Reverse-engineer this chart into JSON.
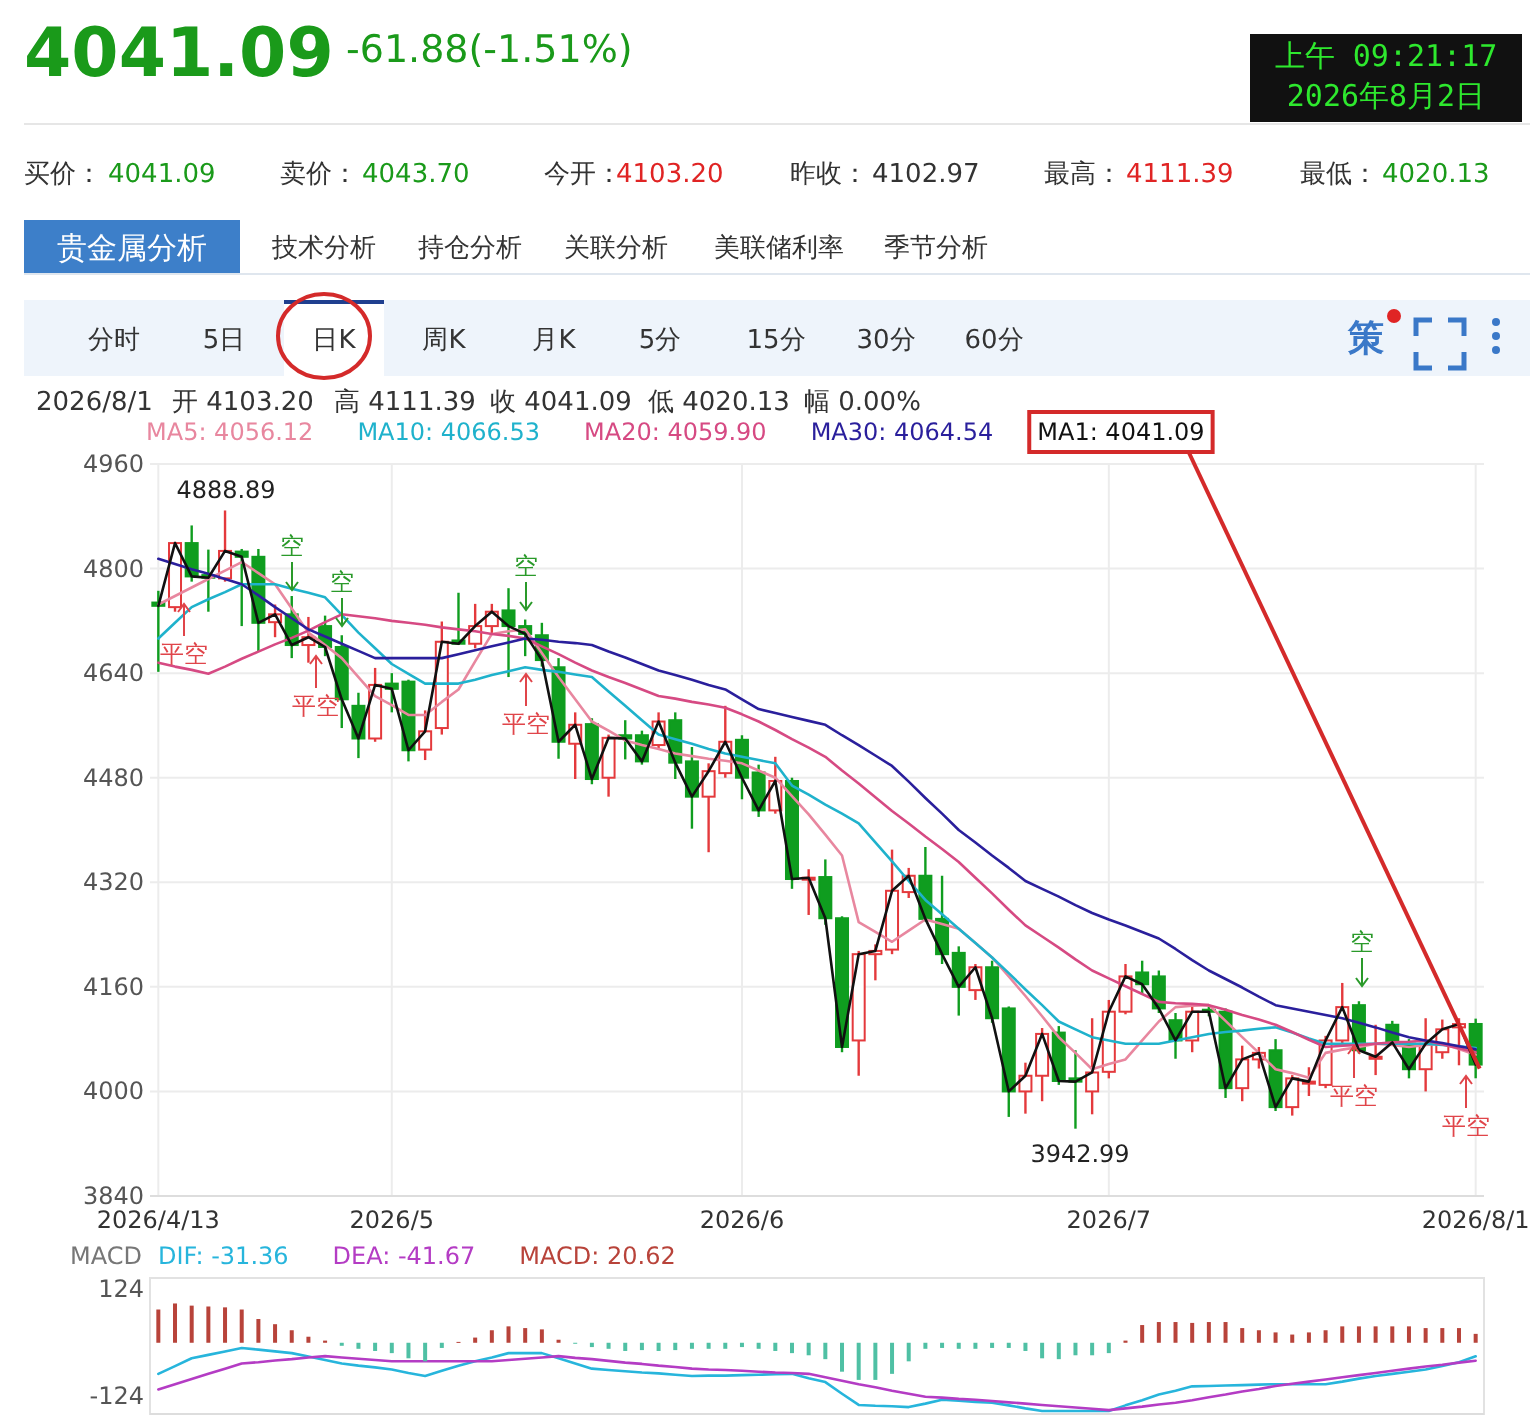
{
  "chart_data": [
    {
      "type": "other",
      "annotations": [
        "4041.09",
        "-61.88(-1.51%)",
        "上午 09:21:17",
        "2026年8月2日",
        "买价：",
        "4041.09",
        "卖价：",
        "4043.70",
        "今开：",
        "4103.20",
        "昨收：",
        "4102.97",
        "最高：",
        "4111.39",
        "最低：",
        "4020.13",
        "贵金属分析",
        "技术分析",
        "持仓分析",
        "关联分析",
        "美联储利率",
        "季节分析",
        "分时",
        "5日",
        "日K",
        "周K",
        "月K",
        "5分",
        "15分",
        "30分",
        "60分",
        "策",
        "2026/8/1",
        "开 4103.20",
        "高 4111.39",
        "收 4041.09",
        "低 4020.13",
        "幅 0.00%"
      ]
    },
    {
      "type": "candlestick",
      "categories": [
        "2026/4/13",
        null,
        null,
        null,
        null,
        null,
        null,
        null,
        null,
        null,
        null,
        null,
        null,
        null,
        "2026/5",
        null,
        null,
        null,
        null,
        null,
        null,
        null,
        null,
        null,
        null,
        null,
        null,
        null,
        null,
        null,
        null,
        null,
        null,
        null,
        null,
        "2026/6",
        null,
        null,
        null,
        null,
        null,
        null,
        null,
        null,
        null,
        null,
        null,
        null,
        null,
        null,
        null,
        null,
        null,
        null,
        null,
        null,
        null,
        "2026/7",
        null,
        null,
        null,
        null,
        null,
        null,
        null,
        null,
        null,
        null,
        null,
        null,
        null,
        null,
        null,
        null,
        null,
        null,
        null,
        null,
        null,
        "2026/8/1"
      ],
      "ohlc": [
        [
          4748,
          4766,
          4642,
          4743
        ],
        [
          4741,
          4841,
          4734,
          4839
        ],
        [
          4839,
          4866,
          4780,
          4788
        ],
        [
          4790,
          4829,
          4734,
          4786
        ],
        [
          4785,
          4888.89,
          4780,
          4827
        ],
        [
          4826,
          4830,
          4712,
          4818
        ],
        [
          4818,
          4830,
          4673,
          4717
        ],
        [
          4718,
          4745,
          4695,
          4730
        ],
        [
          4730,
          4758,
          4663,
          4683
        ],
        [
          4683,
          4726,
          4656,
          4695
        ],
        [
          4712,
          4728,
          4666,
          4680
        ],
        [
          4680,
          4698,
          4556,
          4600
        ],
        [
          4590,
          4610,
          4510,
          4540
        ],
        [
          4540,
          4648,
          4535,
          4622
        ],
        [
          4624,
          4640,
          4580,
          4616
        ],
        [
          4627,
          4630,
          4505,
          4522
        ],
        [
          4523,
          4583,
          4507,
          4551
        ],
        [
          4556,
          4719,
          4546,
          4688
        ],
        [
          4690,
          4763,
          4683,
          4685
        ],
        [
          4685,
          4746,
          4678,
          4712
        ],
        [
          4712,
          4746,
          4700,
          4734
        ],
        [
          4736,
          4770,
          4634,
          4712
        ],
        [
          4712,
          4722,
          4666,
          4700
        ],
        [
          4698,
          4717,
          4650,
          4660
        ],
        [
          4649,
          4663,
          4509,
          4535
        ],
        [
          4532,
          4580,
          4478,
          4561
        ],
        [
          4562,
          4571,
          4470,
          4478
        ],
        [
          4480,
          4546,
          4451,
          4541
        ],
        [
          4545,
          4568,
          4508,
          4540
        ],
        [
          4545,
          4552,
          4500,
          4505
        ],
        [
          4530,
          4580,
          4525,
          4566
        ],
        [
          4568,
          4580,
          4478,
          4503
        ],
        [
          4505,
          4527,
          4402,
          4451
        ],
        [
          4451,
          4502,
          4366,
          4490
        ],
        [
          4487,
          4590,
          4480,
          4535
        ],
        [
          4538,
          4545,
          4447,
          4480
        ],
        [
          4488,
          4500,
          4420,
          4430
        ],
        [
          4430,
          4512,
          4425,
          4475
        ],
        [
          4475,
          4480,
          4310,
          4325
        ],
        [
          4325,
          4340,
          4270,
          4327
        ],
        [
          4328,
          4355,
          4255,
          4265
        ],
        [
          4265,
          4268,
          4060,
          4068
        ],
        [
          4078,
          4215,
          4024,
          4210
        ],
        [
          4210,
          4225,
          4170,
          4215
        ],
        [
          4217,
          4370,
          4210,
          4307
        ],
        [
          4305,
          4342,
          4296,
          4330
        ],
        [
          4330,
          4374,
          4260,
          4264
        ],
        [
          4264,
          4330,
          4195,
          4210
        ],
        [
          4212,
          4222,
          4116,
          4160
        ],
        [
          4155,
          4195,
          4140,
          4190
        ],
        [
          4190,
          4200,
          4105,
          4112
        ],
        [
          4127,
          4130,
          3961,
          4000
        ],
        [
          4000,
          4044,
          3966,
          4024
        ],
        [
          4024,
          4097,
          3985,
          4088
        ],
        [
          4090,
          4100,
          4010,
          4016
        ],
        [
          4020,
          4063,
          3942.99,
          4015
        ],
        [
          4000,
          4112,
          3965,
          4029
        ],
        [
          4030,
          4140,
          4020,
          4122
        ],
        [
          4122,
          4195,
          4118,
          4176
        ],
        [
          4182,
          4200,
          4150,
          4164
        ],
        [
          4176,
          4185,
          4120,
          4127
        ],
        [
          4109,
          4120,
          4050,
          4078
        ],
        [
          4078,
          4135,
          4060,
          4122
        ],
        [
          4125,
          4130,
          4115,
          4122
        ],
        [
          4122,
          4127,
          3990,
          4005
        ],
        [
          4005,
          4070,
          3985,
          4049
        ],
        [
          4049,
          4068,
          4035,
          4059
        ],
        [
          4063,
          4080,
          3970,
          3976
        ],
        [
          3976,
          4025,
          3963,
          4020
        ],
        [
          4012,
          4037,
          3993,
          4015
        ],
        [
          4010,
          4085,
          4005,
          4078
        ],
        [
          4078,
          4166,
          4070,
          4129
        ],
        [
          4132,
          4138,
          4058,
          4063
        ],
        [
          4050,
          4102,
          4025,
          4053
        ],
        [
          4102,
          4108,
          4070,
          4075
        ],
        [
          4073,
          4080,
          4020,
          4034
        ],
        [
          4034,
          4112,
          4000,
          4073
        ],
        [
          4060,
          4110,
          4050,
          4095
        ],
        [
          4098,
          4112,
          4040,
          4103
        ],
        [
          4103.2,
          4111.39,
          4020.13,
          4041.09
        ]
      ],
      "series": [
        {
          "name": "MA5: 4056.12",
          "type": "line",
          "color": "#e8879f",
          "values": [
            4745,
            4758,
            4771,
            4784,
            4797,
            4810,
            4793,
            4776,
            4739,
            4702,
            4683,
            4663,
            4634,
            4605,
            4591,
            4576,
            4576,
            4596,
            4615,
            4658,
            4700,
            4704,
            4707,
            4671,
            4634,
            4600,
            4566,
            4552,
            4537,
            4530,
            4524,
            4517,
            4513,
            4509,
            4506,
            4502,
            4491,
            4480,
            4452,
            4424,
            4393,
            4361,
            4259,
            4244,
            4229,
            4246,
            4263,
            4256,
            4249,
            4227,
            4205,
            4176,
            4146,
            4115,
            4083,
            4059,
            4034,
            4042,
            4049,
            4078,
            4107,
            4129,
            4131,
            4132,
            4108,
            4083,
            4059,
            4034,
            4028,
            4021,
            4059,
            4064,
            4068,
            4073,
            4071,
            4068,
            4071,
            4073,
            4065,
            4056.12
          ]
        },
        {
          "name": "MA10: 4066.53",
          "type": "line",
          "color": "#1fb2cc",
          "values": [
            4693,
            4717,
            4741,
            4753,
            4764,
            4776,
            4776,
            4776,
            4769,
            4763,
            4756,
            4729,
            4702,
            4678,
            4654,
            4639,
            4624,
            4624,
            4624,
            4630,
            4637,
            4643,
            4649,
            4645,
            4642,
            4638,
            4634,
            4612,
            4590,
            4568,
            4546,
            4539,
            4532,
            4524,
            4517,
            4512,
            4507,
            4502,
            4468,
            4454,
            4439,
            4425,
            4410,
            4381,
            4352,
            4322,
            4293,
            4271,
            4249,
            4227,
            4205,
            4181,
            4156,
            4132,
            4107,
            4095,
            4083,
            4078,
            4073,
            4073,
            4073,
            4078,
            4083,
            4088,
            4091,
            4093,
            4096,
            4098,
            4090,
            4081,
            4073,
            4073,
            4073,
            4073,
            4073,
            4073,
            4073,
            4071,
            4069,
            4066.53
          ]
        },
        {
          "name": "MA20: 4059.90",
          "type": "line",
          "color": "#d64a83",
          "values": [
            4656,
            4650,
            4645,
            4639,
            4650,
            4662,
            4673,
            4684,
            4694,
            4705,
            4718,
            4730,
            4727,
            4724,
            4720,
            4717,
            4714,
            4710,
            4707,
            4704,
            4700,
            4697,
            4693,
            4681,
            4669,
            4656,
            4644,
            4634,
            4625,
            4615,
            4605,
            4601,
            4596,
            4592,
            4587,
            4577,
            4566,
            4553,
            4539,
            4526,
            4512,
            4491,
            4471,
            4450,
            4429,
            4410,
            4390,
            4371,
            4351,
            4327,
            4303,
            4278,
            4254,
            4237,
            4220,
            4202,
            4185,
            4173,
            4161,
            4149,
            4137,
            4135,
            4134,
            4132,
            4125,
            4117,
            4110,
            4102,
            4091,
            4079,
            4068,
            4070,
            4071,
            4073,
            4075,
            4076,
            4078,
            4072,
            4066,
            4059.9
          ]
        },
        {
          "name": "MA30: 4064.54",
          "type": "line",
          "color": "#2a1f9c",
          "values": [
            4815,
            4807,
            4799,
            4792,
            4784,
            4776,
            4759,
            4741,
            4724,
            4707,
            4696,
            4685,
            4674,
            4663,
            4663,
            4663,
            4663,
            4663,
            4669,
            4675,
            4681,
            4687,
            4693,
            4691,
            4688,
            4686,
            4683,
            4673,
            4664,
            4654,
            4644,
            4637,
            4630,
            4622,
            4615,
            4600,
            4585,
            4579,
            4573,
            4567,
            4561,
            4545,
            4530,
            4514,
            4498,
            4474,
            4449,
            4425,
            4400,
            4381,
            4361,
            4342,
            4322,
            4310,
            4298,
            4285,
            4273,
            4263,
            4254,
            4244,
            4234,
            4218,
            4201,
            4185,
            4172,
            4159,
            4145,
            4132,
            4127,
            4122,
            4117,
            4112,
            4105,
            4098,
            4090,
            4083,
            4078,
            4074,
            4069,
            4064.54
          ]
        },
        {
          "name": "MA1: 4041.09",
          "type": "line",
          "color": "#111111",
          "values": [
            4743,
            4839,
            4788,
            4786,
            4827,
            4818,
            4717,
            4730,
            4683,
            4695,
            4680,
            4600,
            4540,
            4622,
            4616,
            4522,
            4551,
            4688,
            4685,
            4712,
            4734,
            4712,
            4700,
            4660,
            4535,
            4561,
            4478,
            4541,
            4540,
            4505,
            4566,
            4503,
            4451,
            4490,
            4535,
            4480,
            4430,
            4475,
            4325,
            4327,
            4265,
            4068,
            4210,
            4215,
            4307,
            4330,
            4264,
            4210,
            4160,
            4190,
            4112,
            4000,
            4024,
            4088,
            4016,
            4015,
            4029,
            4122,
            4176,
            4164,
            4127,
            4078,
            4122,
            4122,
            4005,
            4049,
            4059,
            3976,
            4020,
            4015,
            4078,
            4129,
            4063,
            4053,
            4075,
            4034,
            4073,
            4095,
            4103,
            4041.09
          ]
        }
      ],
      "ylim": [
        3840,
        4960
      ],
      "yticks": [
        3840,
        4000,
        4160,
        4320,
        4480,
        4640,
        4800,
        4960
      ],
      "grid": true,
      "legend": "top left",
      "annotations": [
        "4888.89",
        "3942.99",
        "空",
        "空",
        "空",
        "空",
        "平空",
        "平空",
        "平空",
        "平空",
        "平空"
      ]
    },
    {
      "type": "bar",
      "title": "MACD",
      "categories": [
        null,
        null,
        null,
        null,
        null,
        null,
        null,
        null,
        null,
        null,
        null,
        null,
        null,
        null,
        null,
        null,
        null,
        null,
        null,
        null,
        null,
        null,
        null,
        null,
        null,
        null,
        null,
        null,
        null,
        null,
        null,
        null,
        null,
        null,
        null,
        null,
        null,
        null,
        null,
        null,
        null,
        null,
        null,
        null,
        null,
        null,
        null,
        null,
        null,
        null,
        null,
        null,
        null,
        null,
        null,
        null,
        null,
        null,
        null,
        null,
        null,
        null,
        null,
        null,
        null,
        null,
        null,
        null,
        null,
        null,
        null,
        null,
        null,
        null,
        null,
        null,
        null,
        null,
        null,
        null
      ],
      "series": [
        {
          "name": "DIF: -31.36",
          "type": "line",
          "color": "#27b5dc",
          "values": [
            -72,
            -54,
            -36,
            -28,
            -20,
            -12,
            -16,
            -20,
            -24,
            -32,
            -40,
            -48,
            -53,
            -57,
            -62,
            -70,
            -77,
            -65,
            -53,
            -43,
            -34,
            -24,
            -24,
            -24,
            -36,
            -48,
            -60,
            -63,
            -66,
            -69,
            -71,
            -74,
            -77,
            -76,
            -76,
            -75,
            -74,
            -73,
            -72,
            -82,
            -91,
            -118,
            -144,
            -146,
            -147,
            -149,
            -141,
            -132,
            -134,
            -137,
            -139,
            -145,
            -152,
            -158,
            -158,
            -158,
            -158,
            -158,
            -145,
            -133,
            -120,
            -111,
            -101,
            -100,
            -99,
            -98,
            -97,
            -96,
            -96,
            -96,
            -96,
            -90,
            -83,
            -77,
            -72,
            -67,
            -62,
            -54,
            -45,
            -31.36
          ]
        },
        {
          "name": "DEA: -41.67",
          "type": "line",
          "color": "#b43cc4",
          "values": [
            -108,
            -96,
            -84,
            -72,
            -60,
            -48,
            -45,
            -41,
            -38,
            -34,
            -31,
            -34,
            -37,
            -40,
            -43,
            -43,
            -43,
            -43,
            -43,
            -43,
            -43,
            -40,
            -37,
            -34,
            -31,
            -35,
            -38,
            -42,
            -46,
            -49,
            -53,
            -56,
            -60,
            -62,
            -63,
            -65,
            -67,
            -69,
            -70,
            -72,
            -80,
            -88,
            -96,
            -103,
            -111,
            -118,
            -125,
            -127,
            -130,
            -132,
            -135,
            -138,
            -141,
            -144,
            -147,
            -150,
            -153,
            -156,
            -152,
            -148,
            -143,
            -139,
            -133,
            -126,
            -120,
            -113,
            -107,
            -100,
            -95,
            -90,
            -85,
            -80,
            -75,
            -70,
            -65,
            -60,
            -55,
            -51,
            -46,
            -41.67
          ]
        },
        {
          "name": "MACD: 20.62",
          "type": "bar",
          "color": "#b8433a",
          "values": [
            77,
            91,
            86,
            84,
            82,
            77,
            55,
            43,
            29,
            14,
            5,
            -7,
            -14,
            -19,
            -24,
            -36,
            -43,
            -12,
            2,
            12,
            29,
            38,
            34,
            31,
            7,
            -2,
            -10,
            -14,
            -19,
            -17,
            -19,
            -17,
            -14,
            -14,
            -14,
            -10,
            -14,
            -19,
            -24,
            -29,
            -38,
            -67,
            -86,
            -86,
            -72,
            -43,
            -14,
            -12,
            -14,
            -14,
            -12,
            -12,
            -19,
            -36,
            -38,
            -29,
            -29,
            -24,
            5,
            41,
            48,
            48,
            46,
            48,
            48,
            34,
            29,
            24,
            19,
            24,
            29,
            38,
            38,
            38,
            38,
            38,
            34,
            34,
            34,
            20.62
          ],
          "colors": [
            "#b8433a",
            "#b8433a",
            "#b8433a",
            "#b8433a",
            "#b8433a",
            "#b8433a",
            "#b8433a",
            "#b8433a",
            "#b8433a",
            "#b8433a",
            "#b8433a",
            "#4fc0a4",
            "#4fc0a4",
            "#4fc0a4",
            "#4fc0a4",
            "#4fc0a4",
            "#4fc0a4",
            "#4fc0a4",
            "#b8433a",
            "#b8433a",
            "#b8433a",
            "#b8433a",
            "#b8433a",
            "#b8433a",
            "#b8433a",
            "#4fc0a4",
            "#4fc0a4",
            "#4fc0a4",
            "#4fc0a4",
            "#4fc0a4",
            "#4fc0a4",
            "#4fc0a4",
            "#4fc0a4",
            "#4fc0a4",
            "#4fc0a4",
            "#4fc0a4",
            "#4fc0a4",
            "#4fc0a4",
            "#4fc0a4",
            "#4fc0a4",
            "#4fc0a4",
            "#4fc0a4",
            "#4fc0a4",
            "#4fc0a4",
            "#4fc0a4",
            "#4fc0a4",
            "#4fc0a4",
            "#4fc0a4",
            "#4fc0a4",
            "#4fc0a4",
            "#4fc0a4",
            "#4fc0a4",
            "#4fc0a4",
            "#4fc0a4",
            "#4fc0a4",
            "#4fc0a4",
            "#4fc0a4",
            "#4fc0a4",
            "#b8433a",
            "#b8433a",
            "#b8433a",
            "#b8433a",
            "#b8433a",
            "#b8433a",
            "#b8433a",
            "#b8433a",
            "#b8433a",
            "#b8433a",
            "#b8433a",
            "#b8433a",
            "#b8433a",
            "#b8433a",
            "#b8433a",
            "#b8433a",
            "#b8433a",
            "#b8433a",
            "#b8433a",
            "#b8433a",
            "#b8433a",
            "#b8433a"
          ]
        }
      ],
      "ylim": [
        -165,
        150
      ],
      "yticks": [
        -124,
        124
      ],
      "tick_labels": "y",
      "legend": "top left"
    }
  ]
}
